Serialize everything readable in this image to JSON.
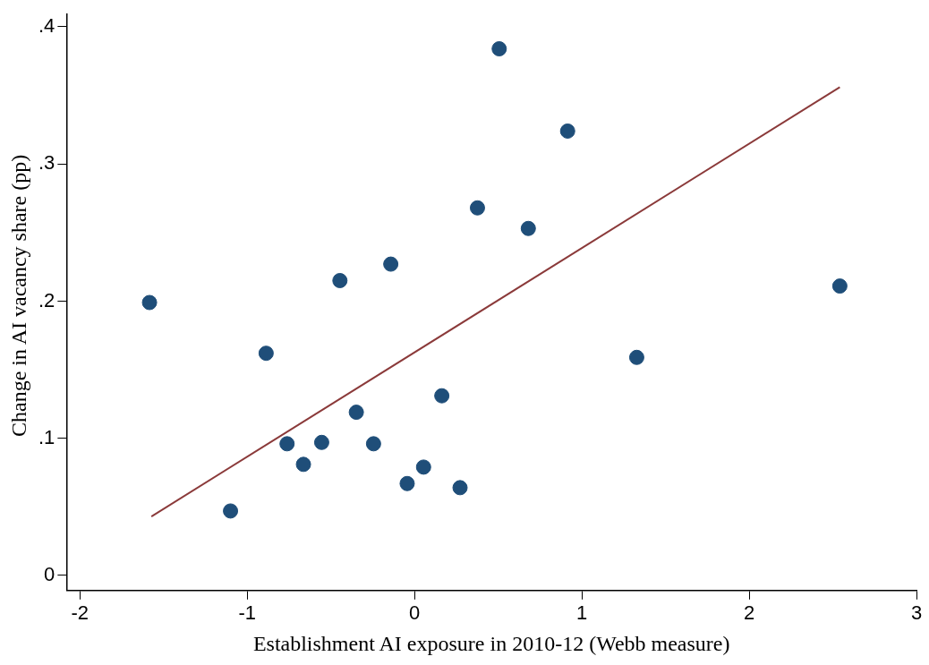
{
  "chart_data": {
    "type": "scatter",
    "xlabel": "Establishment AI exposure in 2010-12 (Webb measure)",
    "ylabel": "Change in AI vacancy share (pp)",
    "series": [
      {
        "marker": "circle",
        "color": "#1f4e79",
        "x": [
          -1.584,
          -1.1,
          -0.887,
          -0.762,
          -0.664,
          -0.555,
          -0.446,
          -0.348,
          -0.245,
          -0.142,
          -0.044,
          0.054,
          0.163,
          0.272,
          0.376,
          0.506,
          0.68,
          0.915,
          1.328,
          2.542
        ],
        "values": [
          0.199,
          0.047,
          0.162,
          0.096,
          0.081,
          0.097,
          0.215,
          0.119,
          0.096,
          0.227,
          0.067,
          0.079,
          0.131,
          0.064,
          0.268,
          0.384,
          0.253,
          0.324,
          0.159,
          0.211
        ]
      },
      {
        "type": "line",
        "marker": "none",
        "color": "#8b3a3a",
        "x": [
          -1.573,
          2.542
        ],
        "values": [
          0.043,
          0.356
        ]
      }
    ],
    "xlim": [
      -2.08,
      3.0
    ],
    "ylim": [
      -0.011,
      0.409
    ],
    "xticks": [
      -2,
      -1,
      0,
      1,
      2,
      3
    ],
    "yticks": [
      0,
      {
        "value": 0.1,
        "label": ".1"
      },
      {
        "value": 0.2,
        "label": ".2"
      },
      {
        "value": 0.3,
        "label": ".3"
      },
      {
        "value": 0.4,
        "label": ".4"
      }
    ],
    "grid": false,
    "legend": false
  }
}
